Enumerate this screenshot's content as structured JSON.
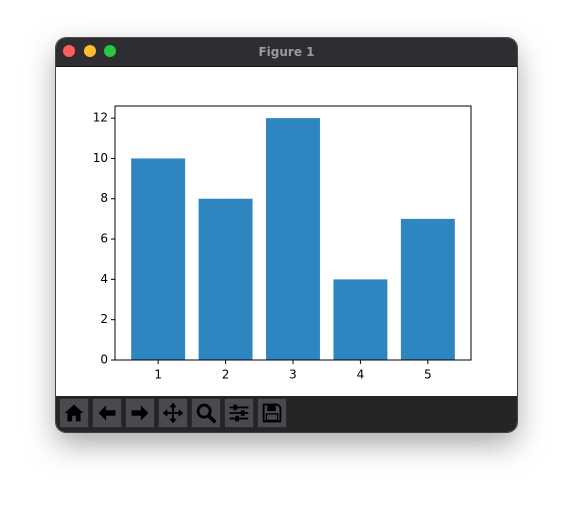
{
  "window": {
    "title": "Figure 1"
  },
  "chart_data": {
    "type": "bar",
    "x": [
      1,
      2,
      3,
      4,
      5
    ],
    "values": [
      10,
      8,
      12,
      4,
      7
    ],
    "color": "#2e86c1",
    "xlim": [
      0.36,
      5.64
    ],
    "xticks": [
      1,
      2,
      3,
      4,
      5
    ],
    "ylim": [
      0,
      12.6
    ],
    "yticks": [
      0,
      2,
      4,
      6,
      8,
      10,
      12
    ]
  }
}
